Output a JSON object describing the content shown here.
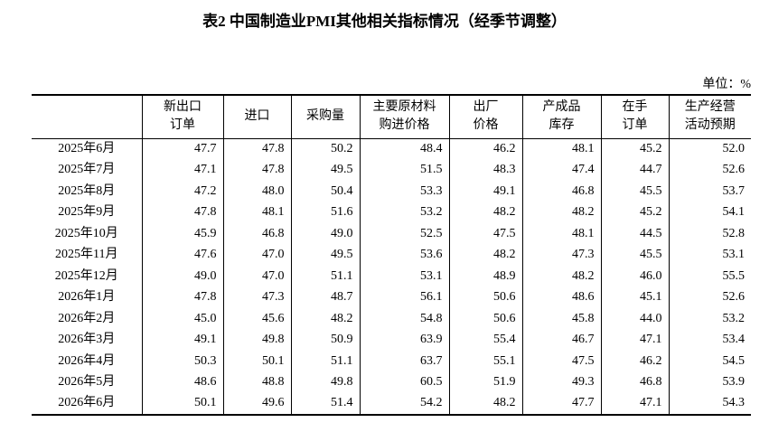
{
  "title": "表2 中国制造业PMI其他相关指标情况（经季节调整）",
  "unit": "单位：%",
  "table": {
    "headers": [
      [
        "新出口",
        "订单"
      ],
      [
        "进口"
      ],
      [
        "采购量"
      ],
      [
        "主要原材料",
        "购进价格"
      ],
      [
        "出厂",
        "价格"
      ],
      [
        "产成品",
        "库存"
      ],
      [
        "在手",
        "订单"
      ],
      [
        "生产经营",
        "活动预期"
      ]
    ],
    "rows": [
      [
        "2025年6月",
        "47.7",
        "47.8",
        "50.2",
        "48.4",
        "46.2",
        "48.1",
        "45.2",
        "52.0"
      ],
      [
        "2025年7月",
        "47.1",
        "47.8",
        "49.5",
        "51.5",
        "48.3",
        "47.4",
        "44.7",
        "52.6"
      ],
      [
        "2025年8月",
        "47.2",
        "48.0",
        "50.4",
        "53.3",
        "49.1",
        "46.8",
        "45.5",
        "53.7"
      ],
      [
        "2025年9月",
        "47.8",
        "48.1",
        "51.6",
        "53.2",
        "48.2",
        "48.2",
        "45.2",
        "54.1"
      ],
      [
        "2025年10月",
        "45.9",
        "46.8",
        "49.0",
        "52.5",
        "47.5",
        "48.1",
        "44.5",
        "52.8"
      ],
      [
        "2025年11月",
        "47.6",
        "47.0",
        "49.5",
        "53.6",
        "48.2",
        "47.3",
        "45.5",
        "53.1"
      ],
      [
        "2025年12月",
        "49.0",
        "47.0",
        "51.1",
        "53.1",
        "48.9",
        "48.2",
        "46.0",
        "55.5"
      ],
      [
        "2026年1月",
        "47.8",
        "47.3",
        "48.7",
        "56.1",
        "50.6",
        "48.6",
        "45.1",
        "52.6"
      ],
      [
        "2026年2月",
        "45.0",
        "45.6",
        "48.2",
        "54.8",
        "50.6",
        "45.8",
        "44.0",
        "53.2"
      ],
      [
        "2026年3月",
        "49.1",
        "49.8",
        "50.9",
        "63.9",
        "55.4",
        "46.7",
        "47.1",
        "53.4"
      ],
      [
        "2026年4月",
        "50.3",
        "50.1",
        "51.1",
        "63.7",
        "55.1",
        "47.5",
        "46.2",
        "54.5"
      ],
      [
        "2026年5月",
        "48.6",
        "48.8",
        "49.8",
        "60.5",
        "51.9",
        "49.3",
        "46.8",
        "53.9"
      ],
      [
        "2026年6月",
        "50.1",
        "49.6",
        "51.4",
        "54.2",
        "48.2",
        "47.7",
        "47.1",
        "54.3"
      ]
    ]
  }
}
